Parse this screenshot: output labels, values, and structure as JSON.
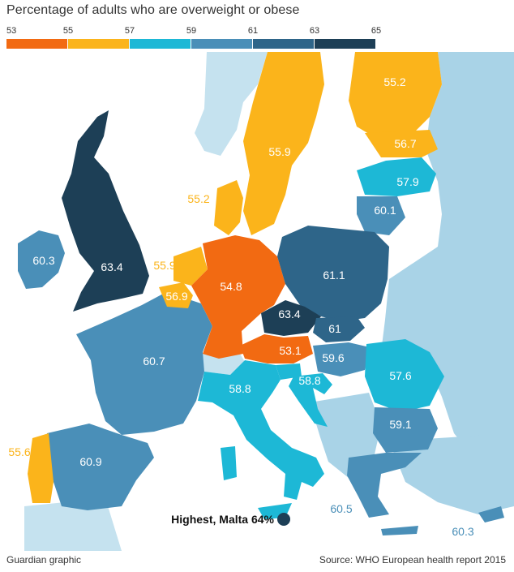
{
  "title": "Percentage of adults who are overweight or obese",
  "legend": {
    "ticks": [
      "53",
      "55",
      "57",
      "59",
      "61",
      "63",
      "65"
    ],
    "colors": [
      "#f26a12",
      "#fbb41b",
      "#1db8d6",
      "#4a8fb8",
      "#2e6589",
      "#1d3f56"
    ]
  },
  "countries": [
    {
      "name": "uk",
      "value": "63.4"
    },
    {
      "name": "ireland",
      "value": "60.3"
    },
    {
      "name": "netherlands",
      "value": "55.9"
    },
    {
      "name": "belgium",
      "value": "56.9"
    },
    {
      "name": "germany",
      "value": "54.8"
    },
    {
      "name": "denmark",
      "value": "55.2"
    },
    {
      "name": "sweden",
      "value": "55.9"
    },
    {
      "name": "finland",
      "value": "55.2"
    },
    {
      "name": "estonia",
      "value": "56.7"
    },
    {
      "name": "latvia",
      "value": "57.9"
    },
    {
      "name": "lithuania",
      "value": "60.1"
    },
    {
      "name": "poland",
      "value": "61.1"
    },
    {
      "name": "czech-republic",
      "value": "63.4"
    },
    {
      "name": "slovakia",
      "value": "61"
    },
    {
      "name": "austria",
      "value": "53.1"
    },
    {
      "name": "hungary",
      "value": "59.6"
    },
    {
      "name": "romania",
      "value": "57.6"
    },
    {
      "name": "slovenia",
      "value": "58.8"
    },
    {
      "name": "croatia",
      "value": "58.8"
    },
    {
      "name": "italy",
      "value": "58.8"
    },
    {
      "name": "france",
      "value": "60.7"
    },
    {
      "name": "spain",
      "value": "60.9"
    },
    {
      "name": "portugal",
      "value": "55.6"
    },
    {
      "name": "bulgaria",
      "value": "59.1"
    },
    {
      "name": "greece",
      "value": "60.5"
    },
    {
      "name": "cyprus",
      "value": "60.3"
    }
  ],
  "annotation": "Highest, Malta 64%",
  "footer": {
    "left": "Guardian graphic",
    "right": "Source: WHO European health report 2015"
  },
  "colors": {
    "orange": "#f26a12",
    "yellow": "#fbb41b",
    "cyan": "#1db8d6",
    "mid_blue": "#4a8fb8",
    "dark_blue": "#2e6589",
    "navy": "#1d3f56",
    "no_data": "#a9d3e7",
    "no_data_light": "#c5e2ef"
  }
}
